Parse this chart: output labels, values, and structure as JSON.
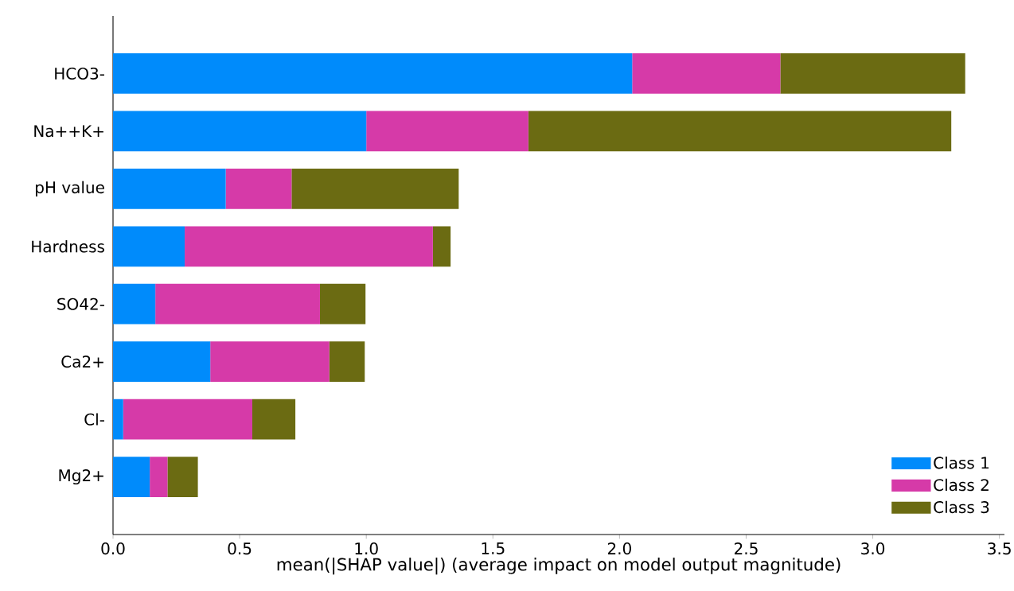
{
  "chart_data": {
    "type": "bar",
    "orientation": "horizontal",
    "stacked": true,
    "categories": [
      "HCO3-",
      "Na++K+",
      "pH value",
      "Hardness",
      "SO42-",
      "Ca2+",
      "Cl-",
      "Mg2+"
    ],
    "series": [
      {
        "name": "Class 1",
        "color": "#008bfb",
        "values": [
          2.05,
          1.0,
          0.445,
          0.283,
          0.167,
          0.384,
          0.04,
          0.145
        ]
      },
      {
        "name": "Class 2",
        "color": "#d63aa8",
        "values": [
          0.585,
          0.64,
          0.26,
          0.98,
          0.65,
          0.47,
          0.51,
          0.07
        ]
      },
      {
        "name": "Class 3",
        "color": "#6b6b12",
        "values": [
          0.73,
          1.67,
          0.66,
          0.07,
          0.18,
          0.14,
          0.17,
          0.12
        ]
      }
    ],
    "xlabel": "mean(|SHAP value|) (average impact on model output magnitude)",
    "xlim": [
      0,
      3.52
    ],
    "xticks": [
      {
        "value": 0,
        "label": "0.0"
      },
      {
        "value": 0.5,
        "label": "0.5"
      },
      {
        "value": 1,
        "label": "1.0"
      },
      {
        "value": 1.5,
        "label": "1.5"
      },
      {
        "value": 2,
        "label": "2.0"
      },
      {
        "value": 2.5,
        "label": "2.5"
      },
      {
        "value": 3,
        "label": "3.0"
      },
      {
        "value": 3.5,
        "label": "3.5"
      }
    ],
    "legend": "bottom right",
    "grid": false
  }
}
